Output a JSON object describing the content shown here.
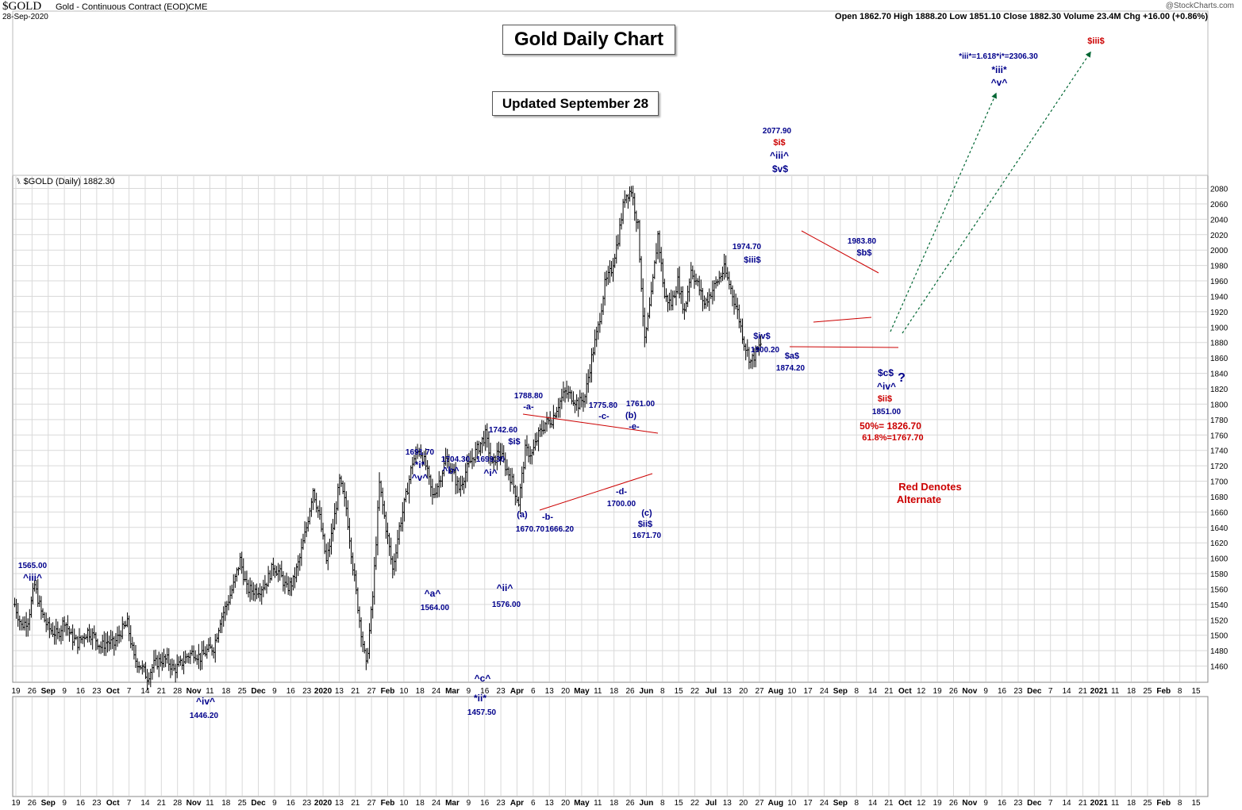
{
  "header": {
    "symbol": "$GOLD",
    "description": "Gold - Continuous Contract (EOD)",
    "exchange": "CME",
    "date": "28-Sep-2020",
    "copyright": "@StockCharts.com",
    "ohlc_line": "Open 1862.70  High 1888.20  Low 1851.10  Close 1882.30  Volume 23.4M  Chg +16.00 (+0.86%)",
    "panel_label": "$GOLD (Daily) 1882.30"
  },
  "titles": {
    "main": "Gold Daily Chart",
    "updated": "Updated September 28"
  },
  "colors": {
    "bars": "#000000",
    "wave_label": "#00008b",
    "alternate": "#cc0000",
    "trendline": "#cc0000",
    "arrow": "#006633",
    "grid": "#d9d9d9"
  },
  "chart_data": {
    "type": "ohlc",
    "title": "Gold Daily Chart",
    "ylim": [
      1440,
      2096
    ],
    "y_ticks": [
      1460,
      1480,
      1500,
      1520,
      1540,
      1560,
      1580,
      1600,
      1620,
      1640,
      1660,
      1680,
      1700,
      1720,
      1740,
      1760,
      1780,
      1800,
      1820,
      1840,
      1860,
      1880,
      1900,
      1920,
      1940,
      1960,
      1980,
      2000,
      2020,
      2040,
      2060,
      2080
    ],
    "x_axis_labels": [
      "19",
      "26",
      "Sep",
      "9",
      "16",
      "23",
      "Oct",
      "7",
      "14",
      "21",
      "28",
      "Nov",
      "11",
      "18",
      "25",
      "Dec",
      "9",
      "16",
      "23",
      "2020",
      "13",
      "21",
      "27",
      "Feb",
      "10",
      "18",
      "24",
      "Mar",
      "9",
      "16",
      "23",
      "Apr",
      "6",
      "13",
      "20",
      "May",
      "11",
      "18",
      "26",
      "Jun",
      "8",
      "15",
      "22",
      "Jul",
      "13",
      "20",
      "27",
      "Aug",
      "10",
      "17",
      "24",
      "Sep",
      "8",
      "14",
      "21",
      "Oct",
      "12",
      "19",
      "26",
      "Nov",
      "9",
      "16",
      "23",
      "Dec",
      "7",
      "14",
      "21",
      "2021",
      "11",
      "18",
      "25",
      "Feb",
      "8",
      "15"
    ],
    "x_axis_bold": [
      "Sep",
      "Oct",
      "Nov",
      "Dec",
      "2020",
      "Feb",
      "Mar",
      "Apr",
      "May",
      "Jun",
      "Jul",
      "Aug",
      "Sep",
      "Oct",
      "Nov",
      "Dec",
      "2021",
      "Feb"
    ],
    "price_path": [
      [
        0,
        1540
      ],
      [
        4,
        1512
      ],
      [
        8,
        1520
      ],
      [
        12,
        1565
      ],
      [
        16,
        1530
      ],
      [
        20,
        1510
      ],
      [
        26,
        1500
      ],
      [
        30,
        1520
      ],
      [
        34,
        1498
      ],
      [
        38,
        1490
      ],
      [
        44,
        1505
      ],
      [
        48,
        1498
      ],
      [
        52,
        1485
      ],
      [
        56,
        1492
      ],
      [
        60,
        1488
      ],
      [
        64,
        1505
      ],
      [
        68,
        1515
      ],
      [
        72,
        1470
      ],
      [
        76,
        1460
      ],
      [
        80,
        1446
      ],
      [
        84,
        1462
      ],
      [
        88,
        1468
      ],
      [
        92,
        1468
      ],
      [
        96,
        1455
      ],
      [
        100,
        1462
      ],
      [
        104,
        1473
      ],
      [
        108,
        1478
      ],
      [
        112,
        1471
      ],
      [
        116,
        1480
      ],
      [
        120,
        1484
      ],
      [
        124,
        1520
      ],
      [
        128,
        1540
      ],
      [
        132,
        1565
      ],
      [
        136,
        1598
      ],
      [
        140,
        1560
      ],
      [
        144,
        1558
      ],
      [
        148,
        1560
      ],
      [
        152,
        1570
      ],
      [
        156,
        1590
      ],
      [
        160,
        1580
      ],
      [
        164,
        1560
      ],
      [
        168,
        1570
      ],
      [
        172,
        1600
      ],
      [
        176,
        1640
      ],
      [
        180,
        1690
      ],
      [
        184,
        1652
      ],
      [
        188,
        1595
      ],
      [
        192,
        1640
      ],
      [
        196,
        1700
      ],
      [
        200,
        1665
      ],
      [
        204,
        1590
      ],
      [
        208,
        1520
      ],
      [
        212,
        1460
      ],
      [
        216,
        1550
      ],
      [
        220,
        1696
      ],
      [
        224,
        1640
      ],
      [
        228,
        1585
      ],
      [
        232,
        1640
      ],
      [
        236,
        1680
      ],
      [
        240,
        1725
      ],
      [
        244,
        1742
      ],
      [
        248,
        1720
      ],
      [
        252,
        1680
      ],
      [
        256,
        1700
      ],
      [
        260,
        1728
      ],
      [
        264,
        1712
      ],
      [
        268,
        1690
      ],
      [
        272,
        1712
      ],
      [
        276,
        1730
      ],
      [
        280,
        1745
      ],
      [
        284,
        1760
      ],
      [
        288,
        1720
      ],
      [
        292,
        1740
      ],
      [
        296,
        1720
      ],
      [
        300,
        1700
      ],
      [
        304,
        1672
      ],
      [
        308,
        1740
      ],
      [
        312,
        1735
      ],
      [
        316,
        1760
      ],
      [
        320,
        1775
      ],
      [
        324,
        1780
      ],
      [
        328,
        1800
      ],
      [
        332,
        1815
      ],
      [
        336,
        1810
      ],
      [
        340,
        1800
      ],
      [
        344,
        1810
      ],
      [
        348,
        1860
      ],
      [
        352,
        1900
      ],
      [
        356,
        1955
      ],
      [
        360,
        1975
      ],
      [
        364,
        2015
      ],
      [
        368,
        2070
      ],
      [
        372,
        2078
      ],
      [
        376,
        2030
      ],
      [
        380,
        1880
      ],
      [
        384,
        1940
      ],
      [
        388,
        2020
      ],
      [
        392,
        1940
      ],
      [
        396,
        1930
      ],
      [
        400,
        1960
      ],
      [
        404,
        1920
      ],
      [
        408,
        1975
      ],
      [
        412,
        1955
      ],
      [
        416,
        1930
      ],
      [
        420,
        1945
      ],
      [
        424,
        1960
      ],
      [
        428,
        1975
      ],
      [
        432,
        1950
      ],
      [
        436,
        1920
      ],
      [
        440,
        1880
      ],
      [
        444,
        1855
      ],
      [
        448,
        1870
      ],
      [
        451,
        1882
      ]
    ],
    "wave_labels": {
      "l1565": "1565.00",
      "iii_a": "^iii^",
      "l1446": "1446.20",
      "iv_a": "^iv^",
      "l1691": "1691.70",
      "i_star": "*i*",
      "v_a": "^v^",
      "l1704": "1704.30",
      "b_a": "^b^",
      "a_a": "^a^",
      "l1564": "1564.00",
      "c_a": "^c^",
      "ii_star": "*ii*",
      "l1457": "1457.50",
      "l1699": "1699.30",
      "i_a": "^i^",
      "ii_a": "^ii^",
      "l1576": "1576.00",
      "l1742": "1742.60",
      "i_d": "$i$",
      "l1788": "1788.80",
      "a_dash": "-a-",
      "a_paren": "(a)",
      "b_dash": "-b-",
      "l1670": "1670.70",
      "l1666": "1666.20",
      "l1775": "1775.80",
      "c_dash": "-c-",
      "l1761": "1761.00",
      "b_paren": "(b)",
      "e_dash": "-e-",
      "d_dash": "-d-",
      "l1700": "1700.00",
      "c_paren": "(c)",
      "ii_d": "$ii$",
      "l1671": "1671.70",
      "l1974": "1974.70",
      "iii_d": "$iii$",
      "iv_d": "$iv$",
      "l1900": "1900.20",
      "l2077": "2077.90",
      "i_red": "$i$",
      "iii_a2": "^iii^",
      "v_d": "$v$",
      "a_d": "$a$",
      "l1874": "1874.20",
      "l1983": "1983.80",
      "b_d": "$b$",
      "c_d": "$c$",
      "qmark": "?",
      "iv_a2": "^iv^",
      "ii_red": "$ii$",
      "l1851": "1851.00",
      "fib50": "50%= 1826.70",
      "fib618": "61.8%=1767.70",
      "target": "*iii*=1.618*i*=2306.30",
      "iii_star": "*iii*",
      "v_a2": "^v^",
      "iii_red": "$iii$",
      "red_note_1": "Red Denotes",
      "red_note_2": "Alternate"
    }
  }
}
